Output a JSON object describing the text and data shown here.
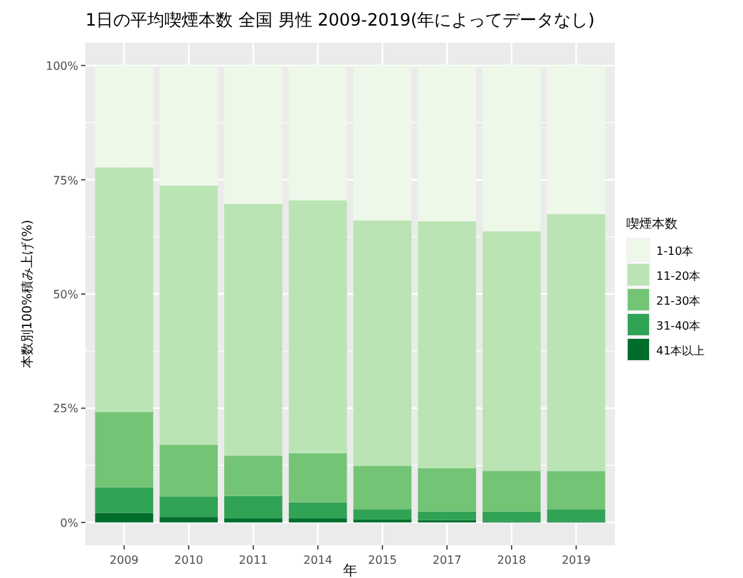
{
  "chart_data": {
    "type": "bar",
    "stacked": true,
    "title": "1日の平均喫煙本数 全国 男性 2009-2019(年によってデータなし)",
    "xlabel": "年",
    "ylabel": "本数別100%積み上げ(%)",
    "legend_title": "喫煙本数",
    "legend": "right",
    "grid": true,
    "categories": [
      "2009",
      "2010",
      "2011",
      "2014",
      "2015",
      "2017",
      "2018",
      "2019"
    ],
    "ylim": [
      -5,
      105
    ],
    "yticks": [
      {
        "value": 0,
        "label": "0%"
      },
      {
        "value": 25,
        "label": "25%"
      },
      {
        "value": 50,
        "label": "50%"
      },
      {
        "value": 75,
        "label": "75%"
      },
      {
        "value": 100,
        "label": "100%"
      }
    ],
    "series": [
      {
        "name": "41本以上",
        "color": "#006d2c",
        "values": [
          2.1,
          1.2,
          0.9,
          0.9,
          0.6,
          0.5,
          0.2,
          0.2
        ]
      },
      {
        "name": "31-40本",
        "color": "#31a354",
        "values": [
          5.6,
          4.5,
          4.9,
          3.5,
          2.3,
          1.9,
          2.2,
          2.7
        ]
      },
      {
        "name": "21-30本",
        "color": "#74c476",
        "values": [
          16.5,
          11.3,
          8.8,
          10.7,
          9.5,
          9.5,
          8.9,
          8.3
        ]
      },
      {
        "name": "11-20本",
        "color": "#bae4b3",
        "values": [
          53.5,
          56.7,
          55.1,
          55.4,
          53.7,
          54.0,
          52.4,
          56.3
        ]
      },
      {
        "name": "1-10本",
        "color": "#edf8e9",
        "values": [
          22.3,
          26.3,
          30.3,
          29.5,
          33.9,
          34.1,
          36.3,
          32.5
        ]
      }
    ]
  }
}
